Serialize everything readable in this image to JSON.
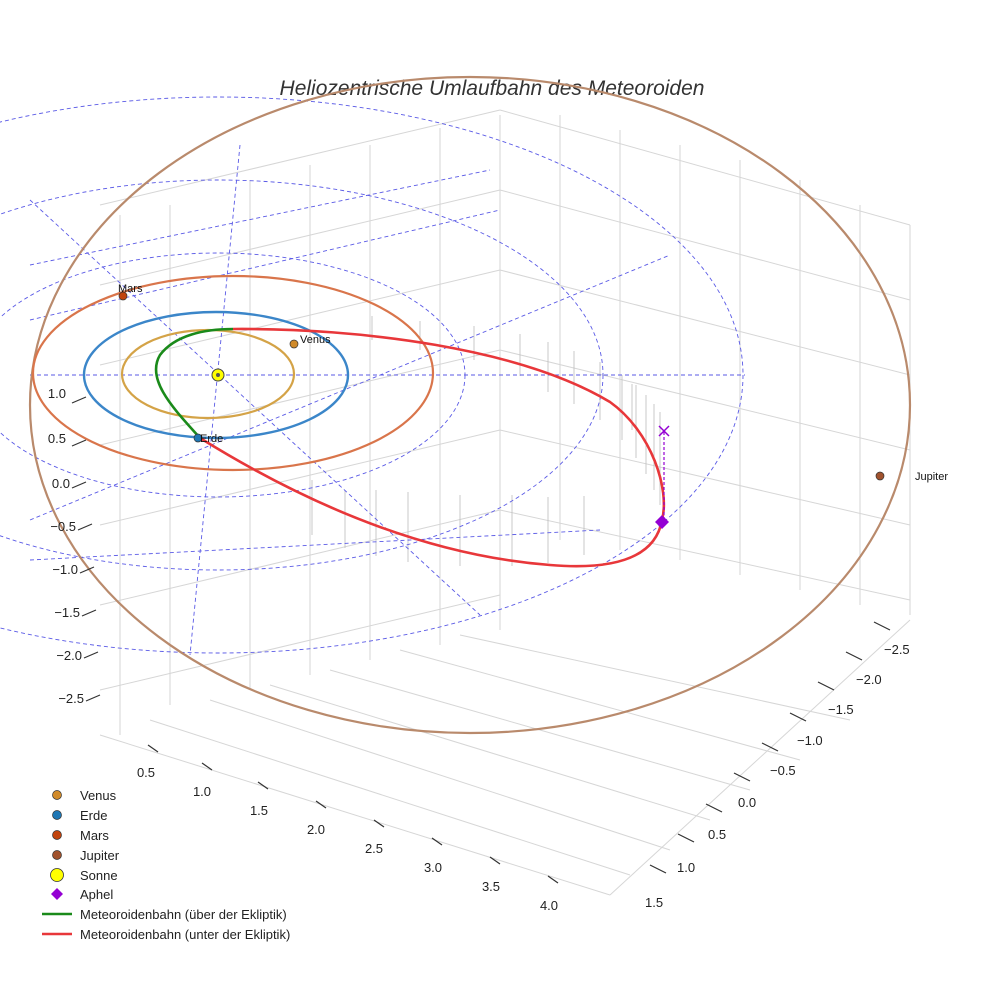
{
  "chart_data": {
    "type": "scatter3d",
    "title": "Heliozentrische Umlaufbahn des Meteoroiden",
    "axes": {
      "x": {
        "ticks": [
          "0.5",
          "1.0",
          "1.5",
          "2.0",
          "2.5",
          "3.0",
          "3.5",
          "4.0"
        ]
      },
      "y": {
        "ticks": [
          "−2.5",
          "−2.0",
          "−1.5",
          "−1.0",
          "−0.5",
          "0.0",
          "0.5",
          "1.0",
          "1.5"
        ]
      },
      "z": {
        "ticks": [
          "1.0",
          "0.5",
          "0.0",
          "−0.5",
          "−1.0",
          "−1.5",
          "−2.0",
          "−2.5"
        ]
      }
    },
    "planets": [
      {
        "name": "Venus",
        "label": "Venus",
        "color": "#d08a2a",
        "orbit_color": "#d4a347"
      },
      {
        "name": "Erde",
        "label": "Erde",
        "color": "#1f77b4",
        "orbit_color": "#3b86c9"
      },
      {
        "name": "Mars",
        "label": "Mars",
        "color": "#c1440e",
        "orbit_color": "#d9754b"
      },
      {
        "name": "Jupiter",
        "label": "Jupiter",
        "color": "#a0522d",
        "orbit_color": "#b98a6c"
      }
    ],
    "sun": {
      "name": "Sonne",
      "color": "#ffff00"
    },
    "aphel": {
      "name": "Aphel",
      "color": "#9400d3"
    },
    "meteoroid_series": [
      {
        "name": "Meteoroidenbahn (über der Ekliptik)",
        "color": "#1a8a1a"
      },
      {
        "name": "Meteoroidenbahn (unter der Ekliptik)",
        "color": "#e8373a"
      }
    ],
    "legend": [
      {
        "label": "Venus",
        "kind": "dot",
        "color": "#d08a2a"
      },
      {
        "label": "Erde",
        "kind": "dot",
        "color": "#1f77b4"
      },
      {
        "label": "Mars",
        "kind": "dot",
        "color": "#c1440e"
      },
      {
        "label": "Jupiter",
        "kind": "dot",
        "color": "#a0522d"
      },
      {
        "label": "Sonne",
        "kind": "sun",
        "color": "#ffff00"
      },
      {
        "label": "Aphel",
        "kind": "diamond",
        "color": "#9400d3"
      },
      {
        "label": "Meteoroidenbahn (über der Ekliptik)",
        "kind": "line",
        "color": "#1a8a1a"
      },
      {
        "label": "Meteoroidenbahn (unter der Ekliptik)",
        "kind": "line",
        "color": "#e8373a"
      }
    ]
  }
}
